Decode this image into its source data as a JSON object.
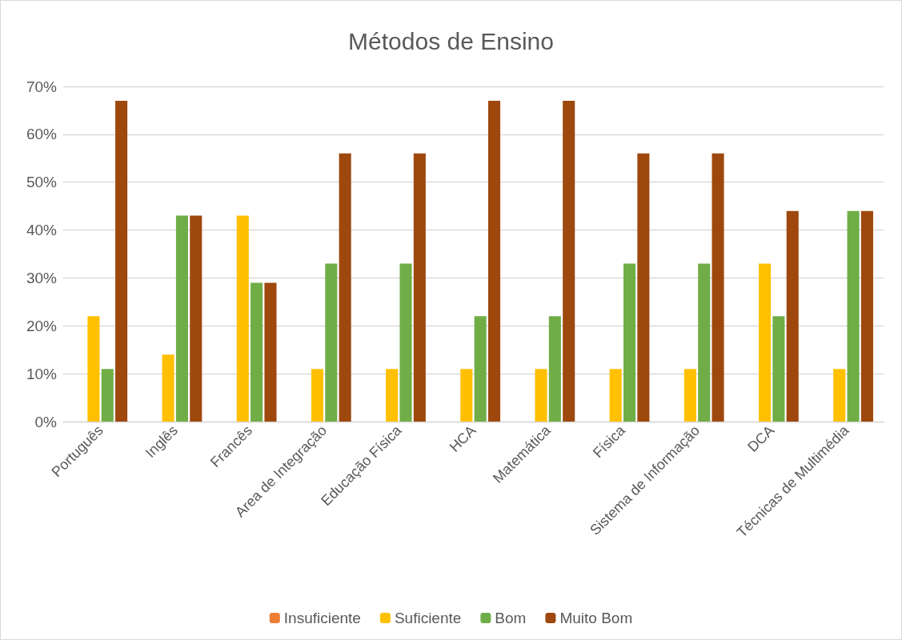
{
  "chart_data": {
    "type": "bar",
    "title": "Métodos de Ensino",
    "categories": [
      "Português",
      "Inglês",
      "Francês",
      "Area de Integração",
      "Educação Física",
      "HCA",
      "Matemática",
      "Física",
      "Sistema de Informação",
      "DCA",
      "Técnicas de Multimédia"
    ],
    "series": [
      {
        "name": "Insuficiente",
        "color": "#ed7d31",
        "values": [
          0,
          0,
          0,
          0,
          0,
          0,
          0,
          0,
          0,
          0,
          0
        ]
      },
      {
        "name": "Suficiente",
        "color": "#ffc000",
        "values": [
          22,
          14,
          43,
          11,
          11,
          11,
          11,
          11,
          11,
          33,
          11
        ]
      },
      {
        "name": "Bom",
        "color": "#70ad47",
        "values": [
          11,
          43,
          29,
          33,
          33,
          22,
          22,
          33,
          33,
          22,
          44
        ]
      },
      {
        "name": "Muito Bom",
        "color": "#9e480e",
        "values": [
          67,
          43,
          29,
          56,
          56,
          67,
          67,
          56,
          56,
          44,
          44
        ]
      }
    ],
    "ylim": [
      0,
      70
    ],
    "yticks": [
      {
        "value": 0,
        "label": "0%"
      },
      {
        "value": 10,
        "label": "10%"
      },
      {
        "value": 20,
        "label": "20%"
      },
      {
        "value": 30,
        "label": "30%"
      },
      {
        "value": 40,
        "label": "40%"
      },
      {
        "value": 50,
        "label": "50%"
      },
      {
        "value": 60,
        "label": "60%"
      },
      {
        "value": 70,
        "label": "70%"
      }
    ],
    "grid": "y",
    "legend": "bottom"
  }
}
